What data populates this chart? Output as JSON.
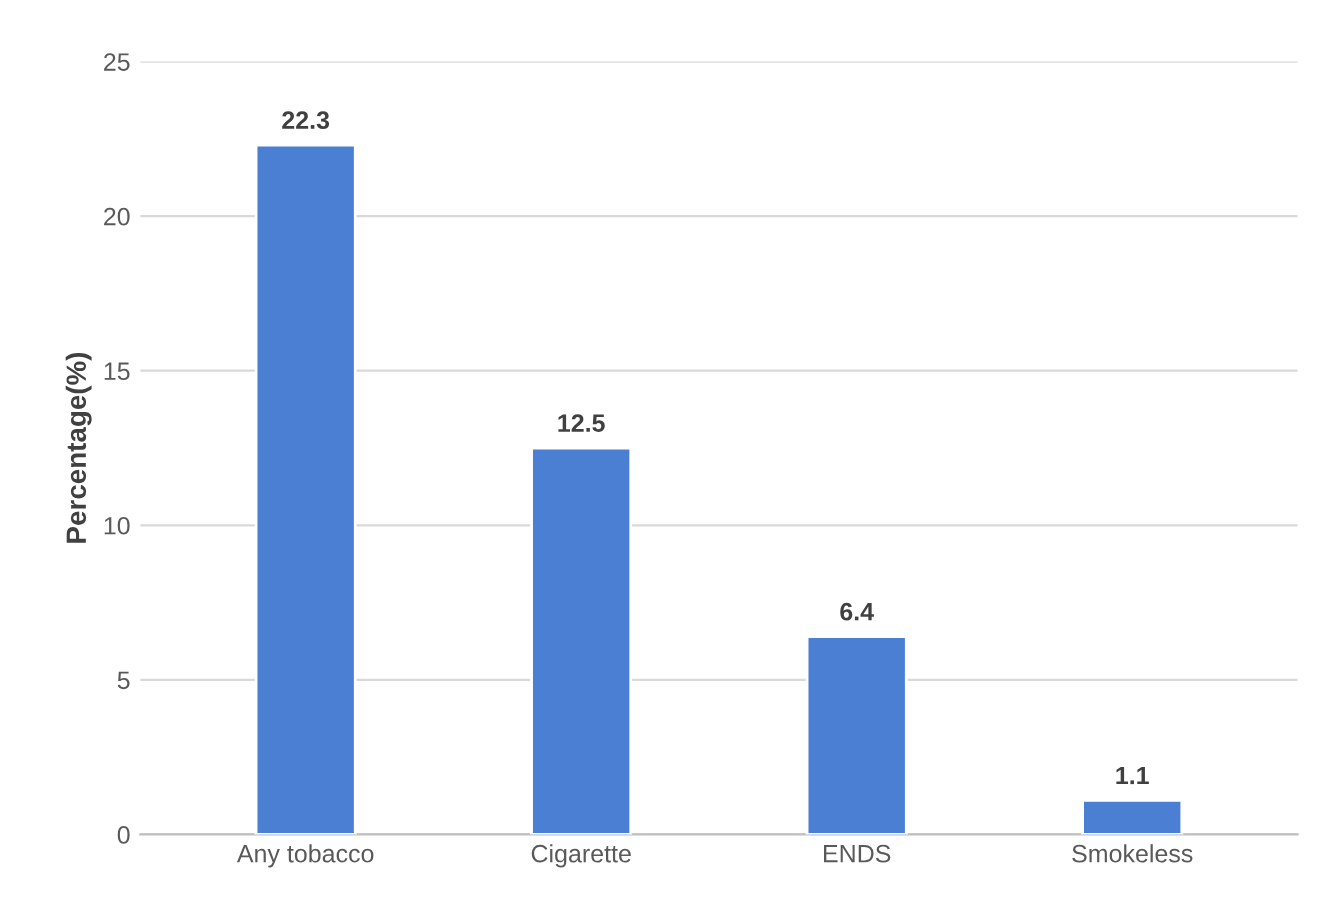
{
  "chart_data": {
    "type": "bar",
    "ylabel": "Percentage(%)",
    "categories": [
      "Any tobacco",
      "Cigarette",
      "ENDS",
      "Smokeless"
    ],
    "values": [
      22.3,
      12.5,
      6.4,
      1.1
    ],
    "color": "#4a7fd4",
    "ylim": [
      0,
      25
    ],
    "yticks": [
      0,
      5,
      10,
      15,
      20,
      25
    ],
    "grid": "y",
    "data_labels": true
  }
}
